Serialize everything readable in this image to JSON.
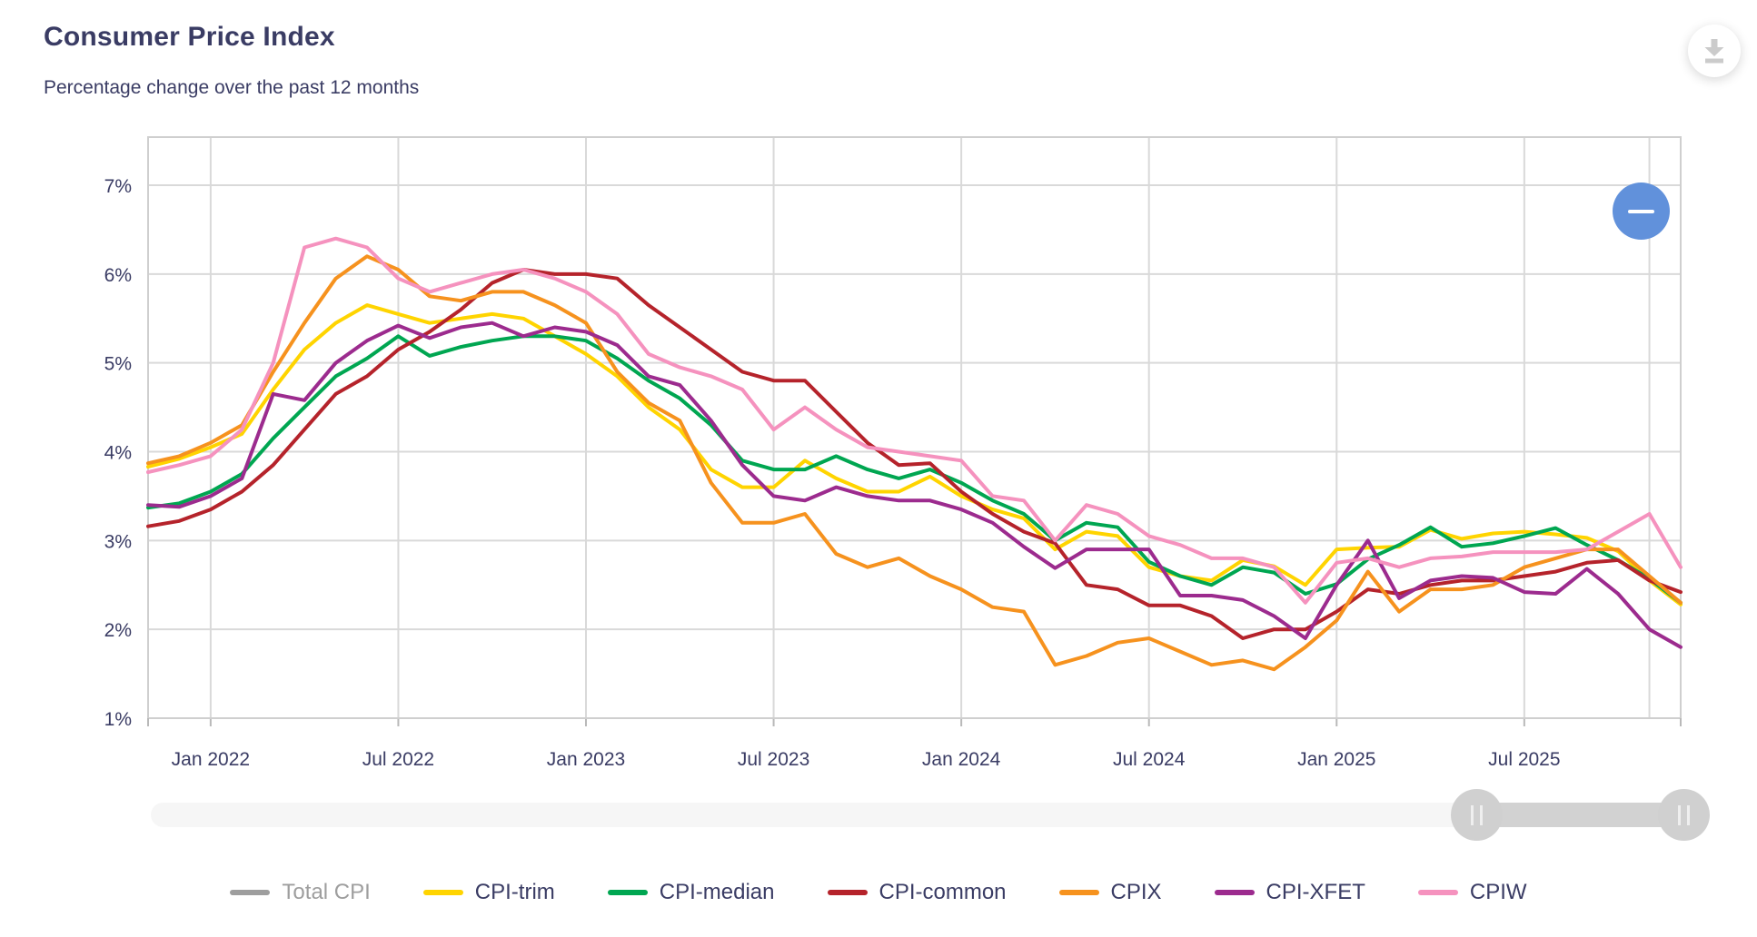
{
  "header": {
    "title": "Consumer Price Index",
    "subtitle": "Percentage change over the past 12 months"
  },
  "toolbar": {
    "download_label": "Download chart",
    "zoom_out_label": "Zoom out"
  },
  "chart_data": {
    "type": "line",
    "title": "Consumer Price Index",
    "subtitle": "Percentage change over the past 12 months",
    "x_start": "Nov 2021",
    "x_end": "Dec 2025",
    "points_per_series": 50,
    "x_tick_labels": [
      "Jan 2022",
      "Jul 2022",
      "Jan 2023",
      "Jul 2023",
      "Jan 2024",
      "Jul 2024",
      "Jan 2025",
      "Jul 2025"
    ],
    "y_tick_labels": [
      "7%",
      "6%",
      "5%",
      "4%",
      "3%",
      "2%",
      "1%"
    ],
    "ylim": [
      1,
      7
    ],
    "grid": true,
    "legend_position": "bottom",
    "series": [
      {
        "name": "CPI-trim",
        "color": "#FFD400",
        "values": [
          3.83,
          3.92,
          4.05,
          4.2,
          4.7,
          5.15,
          5.45,
          5.65,
          5.55,
          5.45,
          5.5,
          5.55,
          5.5,
          5.3,
          5.1,
          4.85,
          4.5,
          4.25,
          3.8,
          3.6,
          3.6,
          3.9,
          3.7,
          3.55,
          3.55,
          3.72,
          3.5,
          3.35,
          3.25,
          2.9,
          3.1,
          3.05,
          2.7,
          2.6,
          2.55,
          2.78,
          2.71,
          2.5,
          2.9,
          2.92,
          2.93,
          3.12,
          3.02,
          3.08,
          3.1,
          3.07,
          3.03,
          2.88,
          2.55,
          2.28
        ]
      },
      {
        "name": "CPI-median",
        "color": "#00A651",
        "values": [
          3.37,
          3.42,
          3.55,
          3.75,
          4.15,
          4.5,
          4.85,
          5.05,
          5.3,
          5.08,
          5.18,
          5.25,
          5.3,
          5.3,
          5.25,
          5.05,
          4.8,
          4.6,
          4.3,
          3.9,
          3.8,
          3.8,
          3.95,
          3.8,
          3.7,
          3.8,
          3.65,
          3.45,
          3.3,
          3.0,
          3.2,
          3.15,
          2.76,
          2.6,
          2.5,
          2.7,
          2.64,
          2.4,
          2.51,
          2.79,
          2.95,
          3.15,
          2.93,
          2.97,
          3.05,
          3.14,
          2.95,
          2.78,
          2.57,
          2.3
        ]
      },
      {
        "name": "CPI-common",
        "color": "#B5232B",
        "values": [
          3.16,
          3.22,
          3.35,
          3.55,
          3.85,
          4.25,
          4.65,
          4.85,
          5.15,
          5.35,
          5.6,
          5.9,
          6.05,
          6.0,
          6.0,
          5.95,
          5.65,
          5.4,
          5.15,
          4.9,
          4.8,
          4.8,
          4.45,
          4.1,
          3.85,
          3.87,
          3.55,
          3.3,
          3.1,
          2.97,
          2.5,
          2.45,
          2.27,
          2.27,
          2.15,
          1.9,
          2.0,
          2.0,
          2.2,
          2.45,
          2.4,
          2.5,
          2.55,
          2.55,
          2.6,
          2.65,
          2.75,
          2.78,
          2.55,
          2.42
        ]
      },
      {
        "name": "CPIX",
        "color": "#F6921E",
        "values": [
          3.87,
          3.95,
          4.1,
          4.3,
          4.9,
          5.45,
          5.95,
          6.2,
          6.05,
          5.75,
          5.7,
          5.8,
          5.8,
          5.65,
          5.45,
          4.9,
          4.55,
          4.35,
          3.65,
          3.2,
          3.2,
          3.3,
          2.85,
          2.7,
          2.8,
          2.6,
          2.45,
          2.25,
          2.2,
          1.6,
          1.7,
          1.85,
          1.9,
          1.75,
          1.6,
          1.65,
          1.55,
          1.8,
          2.1,
          2.65,
          2.2,
          2.45,
          2.45,
          2.5,
          2.7,
          2.8,
          2.9,
          2.9,
          2.6,
          2.3
        ]
      },
      {
        "name": "CPI-XFET",
        "color": "#9C2B8E",
        "values": [
          3.4,
          3.38,
          3.5,
          3.7,
          4.65,
          4.58,
          5.0,
          5.25,
          5.42,
          5.28,
          5.4,
          5.45,
          5.3,
          5.4,
          5.35,
          5.2,
          4.85,
          4.75,
          4.35,
          3.85,
          3.5,
          3.45,
          3.6,
          3.5,
          3.45,
          3.45,
          3.35,
          3.2,
          2.93,
          2.69,
          2.9,
          2.9,
          2.9,
          2.38,
          2.38,
          2.33,
          2.15,
          1.9,
          2.5,
          3.0,
          2.35,
          2.55,
          2.6,
          2.58,
          2.42,
          2.4,
          2.68,
          2.4,
          2.0,
          1.8
        ]
      },
      {
        "name": "CPIW",
        "color": "#F592BE",
        "values": [
          3.77,
          3.85,
          3.95,
          4.25,
          5.0,
          6.3,
          6.4,
          6.3,
          5.95,
          5.8,
          5.9,
          6.0,
          6.05,
          5.95,
          5.8,
          5.55,
          5.1,
          4.95,
          4.85,
          4.7,
          4.25,
          4.5,
          4.25,
          4.05,
          4.0,
          3.95,
          3.9,
          3.5,
          3.45,
          3.0,
          3.4,
          3.3,
          3.05,
          2.95,
          2.8,
          2.8,
          2.7,
          2.3,
          2.75,
          2.8,
          2.7,
          2.8,
          2.82,
          2.87,
          2.87,
          2.87,
          2.9,
          3.1,
          3.3,
          2.7
        ]
      }
    ],
    "legend": [
      {
        "label": "Total CPI",
        "color": "#9E9E9E",
        "disabled": true
      },
      {
        "label": "CPI-trim",
        "color": "#FFD400",
        "disabled": false
      },
      {
        "label": "CPI-median",
        "color": "#00A651",
        "disabled": false
      },
      {
        "label": "CPI-common",
        "color": "#B5232B",
        "disabled": false
      },
      {
        "label": "CPIX",
        "color": "#F6921E",
        "disabled": false
      },
      {
        "label": "CPI-XFET",
        "color": "#9C2B8E",
        "disabled": false
      },
      {
        "label": "CPIW",
        "color": "#F592BE",
        "disabled": false
      }
    ]
  }
}
